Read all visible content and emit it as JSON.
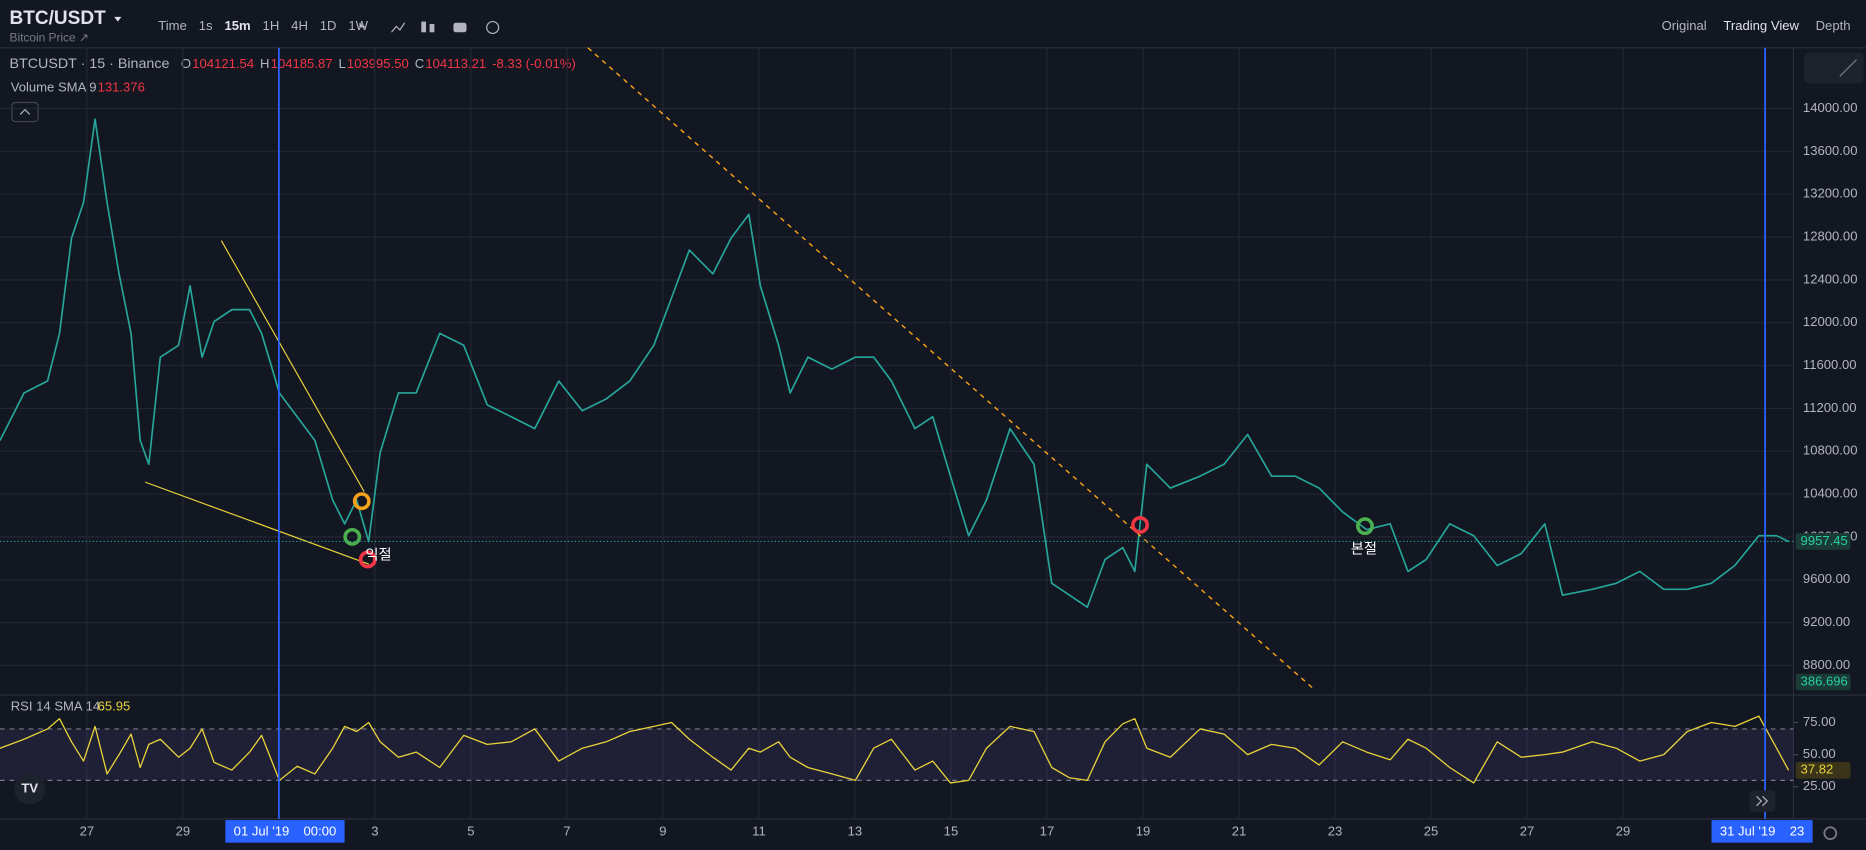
{
  "header": {
    "symbol": "BTC/USDT",
    "subtitle": "Bitcoin Price ↗",
    "timeframes": [
      "Time",
      "1s",
      "15m",
      "1H",
      "4H",
      "1D",
      "1W"
    ],
    "views": [
      "Original",
      "Trading View",
      "Depth"
    ]
  },
  "legend": {
    "name": "BTCUSDT · 15 · Binance",
    "ohlc": [
      {
        "key": "O",
        "value": "104121.54"
      },
      {
        "key": "H",
        "value": "104185.87"
      },
      {
        "key": "L",
        "value": "103995.50"
      },
      {
        "key": "C",
        "value": "104113.21"
      }
    ],
    "change": "-8.33 (-0.01%)",
    "volume_label": "Volume SMA 9",
    "volume_value": "131.376"
  },
  "annotations": [
    "익절",
    "본절"
  ],
  "chart_data": [
    {
      "type": "line",
      "x": [
        -1.81,
        -1.31,
        -0.82,
        -0.57,
        -0.32,
        -0.07,
        0.17,
        0.42,
        0.67,
        0.92,
        1.11,
        1.29,
        1.53,
        1.91,
        2.15,
        2.4,
        2.65,
        3.02,
        3.39,
        3.64,
        4.01,
        4.38,
        4.75,
        5.12,
        5.37,
        5.62,
        5.87,
        6.11,
        6.49,
        6.86,
        7.35,
        7.85,
        8.34,
        8.84,
        9.33,
        9.83,
        10.32,
        10.82,
        11.31,
        11.81,
        12.18,
        12.55,
        13.04,
        13.42,
        13.79,
        14.03,
        14.41,
        14.65,
        15.02,
        15.52,
        16.01,
        16.39,
        16.76,
        17.25,
        17.62,
        17.99,
        18.37,
        18.74,
        19.23,
        19.73,
        20.1,
        20.47,
        20.84,
        21.21,
        21.58,
        21.83,
        22.08,
        22.57,
        23.19,
        23.69,
        24.18,
        24.68,
        25.17,
        25.67,
        26.16,
        26.66,
        27.15,
        27.52,
        27.9,
        28.39,
        28.89,
        29.38,
        29.88,
        30.37,
        30.74,
        31.36,
        31.86,
        32.35,
        32.85,
        33.34,
        33.84,
        34.33,
        34.83,
        35.2,
        35.45
      ],
      "series": [
        {
          "name": "BTCUSDT",
          "color": "#26a69a",
          "values": [
            10900,
            11344,
            11456,
            11900,
            12789,
            13122,
            13900,
            13122,
            12456,
            11900,
            10900,
            10678,
            11678,
            11789,
            12344,
            11678,
            12011,
            12122,
            12122,
            11900,
            11344,
            11122,
            10900,
            10344,
            10122,
            10344,
            9956,
            10789,
            11344,
            11344,
            11900,
            11789,
            11233,
            11122,
            11011,
            11456,
            11178,
            11289,
            11456,
            11789,
            12233,
            12678,
            12456,
            12789,
            13011,
            12344,
            11789,
            11344,
            11678,
            11567,
            11678,
            11678,
            11456,
            11011,
            11122,
            10567,
            10011,
            10344,
            11011,
            10678,
            9567,
            9456,
            9344,
            9789,
            9900,
            9678,
            10678,
            10456,
            10567,
            10678,
            10956,
            10567,
            10567,
            10456,
            10233,
            10067,
            10122,
            9678,
            9789,
            10122,
            10011,
            9733,
            9844,
            10122,
            9456,
            9511,
            9567,
            9678,
            9511,
            9511,
            9567,
            9733,
            10011,
            10011,
            9957.45
          ]
        }
      ],
      "xlim": [
        -1.81,
        35.55
      ],
      "xticks": [
        {
          "value": 0,
          "label": "27"
        },
        {
          "value": 2,
          "label": "29"
        },
        {
          "value": 6,
          "label": "3"
        },
        {
          "value": 8,
          "label": "5"
        },
        {
          "value": 10,
          "label": "7"
        },
        {
          "value": 12,
          "label": "9"
        },
        {
          "value": 14,
          "label": "11"
        },
        {
          "value": 16,
          "label": "13"
        },
        {
          "value": 18,
          "label": "15"
        },
        {
          "value": 20,
          "label": "17"
        },
        {
          "value": 22,
          "label": "19"
        },
        {
          "value": 24,
          "label": "21"
        },
        {
          "value": 26,
          "label": "23"
        },
        {
          "value": 28,
          "label": "25"
        },
        {
          "value": 30,
          "label": "27"
        },
        {
          "value": 32,
          "label": "29"
        }
      ],
      "ylim": [
        8567,
        14567
      ],
      "yticks": [
        {
          "value": 8800,
          "label": "8800.00"
        },
        {
          "value": 9200,
          "label": "9200.00"
        },
        {
          "value": 9600,
          "label": "9600.00"
        },
        {
          "value": 10000,
          "label": "10000.00"
        },
        {
          "value": 10400,
          "label": "10400.00"
        },
        {
          "value": 10800,
          "label": "10800.00"
        },
        {
          "value": 11200,
          "label": "11200.00"
        },
        {
          "value": 11600,
          "label": "11600.00"
        },
        {
          "value": 12000,
          "label": "12000.00"
        },
        {
          "value": 12400,
          "label": "12400.00"
        },
        {
          "value": 12800,
          "label": "12800.00"
        },
        {
          "value": 13200,
          "label": "13200.00"
        },
        {
          "value": 13600,
          "label": "13600.00"
        },
        {
          "value": 14000,
          "label": "14000.00"
        }
      ],
      "grid": true,
      "last_price": 9957.45,
      "volume_last": 386.696,
      "crosshairs": [
        {
          "x": 4,
          "date": "01 Jul '19",
          "time": "00:00"
        },
        {
          "x": 34.96,
          "date": "31 Jul '19",
          "time": "23"
        }
      ]
    },
    {
      "type": "line",
      "title": "RSI 14 SMA 14",
      "sma": 65.95,
      "color": "#e8d23a",
      "values": [
        55,
        62,
        70,
        78,
        60,
        45,
        72,
        35,
        50,
        66,
        40,
        58,
        62,
        48,
        55,
        70,
        44,
        38,
        52,
        65,
        30,
        41,
        35,
        55,
        72,
        68,
        75,
        60,
        48,
        52,
        40,
        65,
        58,
        60,
        70,
        45,
        55,
        60,
        68,
        72,
        75,
        62,
        48,
        38,
        55,
        52,
        60,
        48,
        40,
        35,
        30,
        55,
        62,
        38,
        45,
        28,
        30,
        55,
        72,
        68,
        40,
        32,
        30,
        60,
        74,
        78,
        55,
        48,
        70,
        66,
        50,
        58,
        55,
        42,
        60,
        52,
        46,
        62,
        55,
        40,
        28,
        60,
        48,
        50,
        52,
        60,
        55,
        45,
        50,
        68,
        75,
        72,
        80,
        55,
        37.82
      ],
      "ylim": [
        0,
        92.6
      ],
      "yticks": [
        {
          "value": 25,
          "label": "25.00"
        },
        {
          "value": 50,
          "label": "50.00"
        },
        {
          "value": 75,
          "label": "75.00"
        }
      ],
      "band": [
        30,
        70
      ],
      "last": 37.82
    }
  ]
}
